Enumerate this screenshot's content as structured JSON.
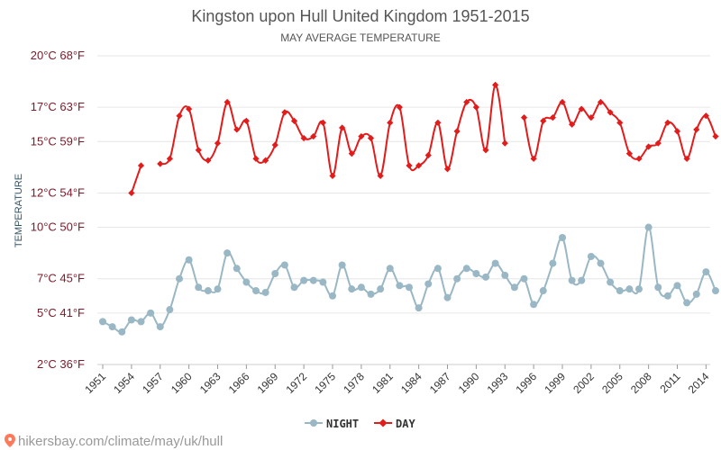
{
  "chart_data": {
    "type": "line",
    "title": "Kingston upon Hull United Kingdom 1951-2015",
    "subtitle": "MAY AVERAGE TEMPERATURE",
    "ylabel": "TEMPERATURE",
    "ylim": [
      2,
      20
    ],
    "yticks": [
      {
        "value": 2,
        "label": "2°C 36°F"
      },
      {
        "value": 5,
        "label": "5°C 41°F"
      },
      {
        "value": 7,
        "label": "7°C 45°F"
      },
      {
        "value": 10,
        "label": "10°C 50°F"
      },
      {
        "value": 12,
        "label": "12°C 54°F"
      },
      {
        "value": 15,
        "label": "15°C 59°F"
      },
      {
        "value": 17,
        "label": "17°C 63°F"
      },
      {
        "value": 20,
        "label": "20°C 68°F"
      }
    ],
    "xlim": [
      1951,
      2015
    ],
    "xticks": [
      "1951",
      "1954",
      "1957",
      "1960",
      "1963",
      "1966",
      "1969",
      "1972",
      "1975",
      "1978",
      "1981",
      "1984",
      "1987",
      "1990",
      "1993",
      "1996",
      "1999",
      "2002",
      "2005",
      "2008",
      "2011",
      "2014"
    ],
    "x": [
      1951,
      1952,
      1953,
      1954,
      1955,
      1956,
      1957,
      1958,
      1959,
      1960,
      1961,
      1962,
      1963,
      1964,
      1965,
      1966,
      1967,
      1968,
      1969,
      1970,
      1971,
      1972,
      1973,
      1974,
      1975,
      1976,
      1977,
      1978,
      1979,
      1980,
      1981,
      1982,
      1983,
      1984,
      1985,
      1986,
      1987,
      1988,
      1989,
      1990,
      1991,
      1992,
      1993,
      1994,
      1995,
      1996,
      1997,
      1998,
      1999,
      2000,
      2001,
      2002,
      2003,
      2004,
      2005,
      2006,
      2007,
      2008,
      2009,
      2010,
      2011,
      2012,
      2013,
      2014,
      2015
    ],
    "series": [
      {
        "name": "NIGHT",
        "color": "#99b7c4",
        "marker": "circle",
        "values": [
          4.5,
          4.2,
          3.9,
          4.6,
          4.5,
          5.0,
          4.2,
          5.2,
          7.0,
          8.1,
          6.5,
          6.3,
          6.4,
          8.5,
          7.6,
          6.8,
          6.3,
          6.2,
          7.3,
          7.8,
          6.5,
          6.9,
          6.9,
          6.8,
          6.0,
          7.8,
          6.4,
          6.5,
          6.1,
          6.4,
          7.6,
          6.6,
          6.5,
          5.3,
          6.7,
          7.6,
          5.9,
          7.0,
          7.6,
          7.3,
          7.1,
          7.9,
          7.2,
          6.5,
          7.0,
          5.5,
          6.3,
          7.9,
          9.4,
          6.9,
          6.9,
          8.3,
          7.9,
          6.8,
          6.3,
          6.4,
          6.4,
          10.0,
          6.5,
          6.0,
          6.6,
          5.6,
          6.1,
          7.4,
          6.3
        ]
      },
      {
        "name": "DAY",
        "color": "#e21b1b",
        "marker": "diamond",
        "values": [
          null,
          null,
          null,
          12.0,
          13.6,
          null,
          13.7,
          14.0,
          16.5,
          16.9,
          14.5,
          13.9,
          14.9,
          17.3,
          15.7,
          16.2,
          14.0,
          13.9,
          14.8,
          16.7,
          16.2,
          15.2,
          15.3,
          16.1,
          13.0,
          15.8,
          14.3,
          15.3,
          15.2,
          13.0,
          16.1,
          17.0,
          13.6,
          13.6,
          14.2,
          16.1,
          13.4,
          15.6,
          17.3,
          17.0,
          14.5,
          18.3,
          14.9,
          null,
          16.4,
          14.0,
          16.2,
          16.4,
          17.3,
          16.0,
          16.9,
          16.4,
          17.3,
          16.7,
          16.1,
          14.3,
          14.0,
          14.7,
          14.9,
          16.1,
          15.6,
          14.0,
          15.7,
          16.5,
          15.3
        ]
      }
    ],
    "legend": {
      "placement": "bottom-center",
      "entries": [
        "NIGHT",
        "DAY"
      ]
    },
    "grid": true
  },
  "footer": {
    "source": "hikersbay.com/climate/may/uk/hull"
  }
}
